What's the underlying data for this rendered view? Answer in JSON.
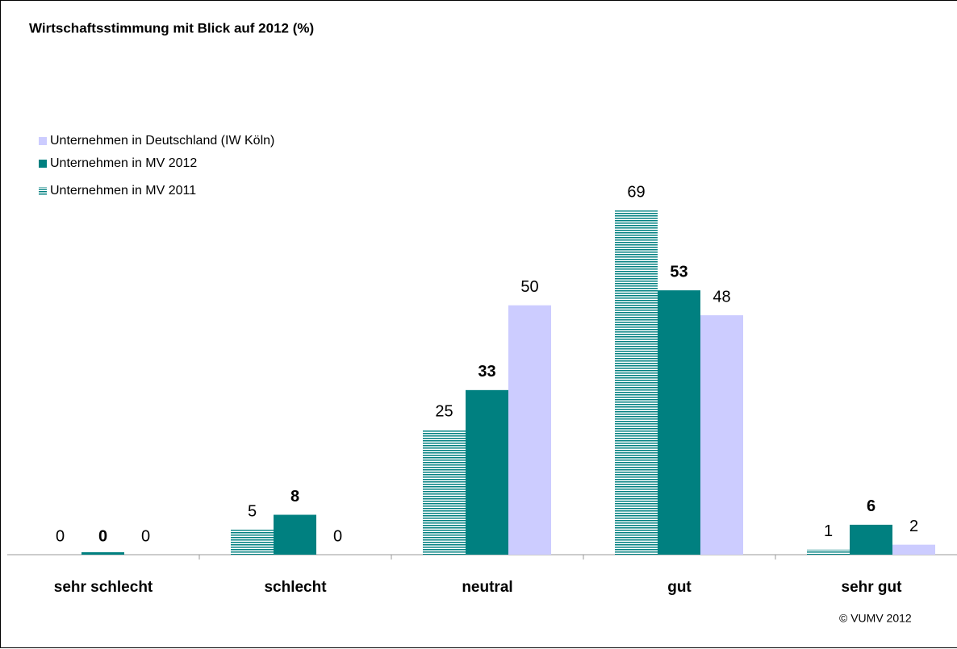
{
  "chart_data": {
    "type": "bar",
    "title": "Wirtschaftsstimmung mit Blick auf 2012 (%)",
    "categories": [
      "sehr schlecht",
      "schlecht",
      "neutral",
      "gut",
      "sehr gut"
    ],
    "series": [
      {
        "name": "Unternehmen in MV 2011",
        "color": "#008080",
        "hatch": "horizontal",
        "values": [
          0,
          5,
          25,
          69,
          1
        ]
      },
      {
        "name": "Unternehmen in MV 2012",
        "color": "#008080",
        "label_bold": true,
        "values": [
          0,
          8,
          33,
          53,
          6
        ]
      },
      {
        "name": "Unternehmen in Deutschland (IW Köln)",
        "color": "#ccccff",
        "values": [
          0,
          0,
          50,
          48,
          2
        ]
      }
    ],
    "ylim": [
      0,
      75
    ],
    "legend": "top-left",
    "footer": "© VUMV 2012"
  }
}
